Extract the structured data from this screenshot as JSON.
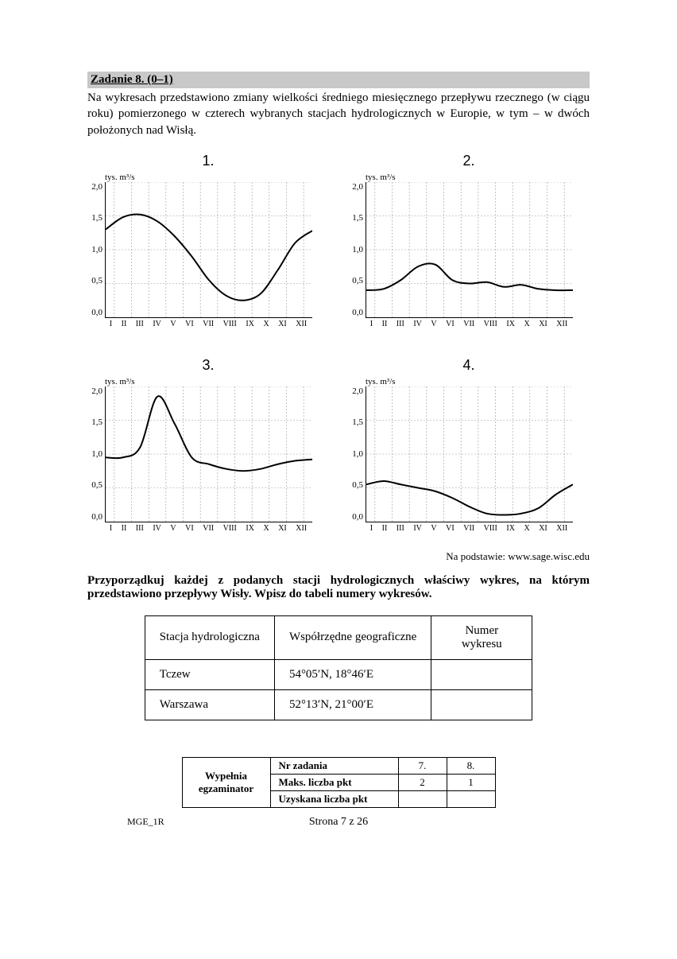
{
  "task": {
    "header": "Zadanie 8. (0–1)",
    "intro": "Na wykresach przedstawiono zmiany wielkości średniego miesięcznego przepływu rzecznego (w ciągu roku) pomierzonego w czterech wybranych stacjach hydrologicznych w Europie, w tym – w dwóch położonych nad Wisłą."
  },
  "axis": {
    "ylabel": "tys. m³/s",
    "yticks": [
      "2,0",
      "1,5",
      "1,0",
      "0,5",
      "0,0"
    ],
    "xticks": [
      "I",
      "II",
      "III",
      "IV",
      "V",
      "VI",
      "VII",
      "VIII",
      "IX",
      "X",
      "XI",
      "XII"
    ],
    "ylim": [
      0,
      2.0
    ],
    "grid_color": "#999999",
    "line_color": "#000000",
    "line_width": 2
  },
  "charts": [
    {
      "num": "1.",
      "data": [
        1.3,
        1.48,
        1.52,
        1.42,
        1.2,
        0.9,
        0.55,
        0.32,
        0.25,
        0.35,
        0.7,
        1.1,
        1.28
      ]
    },
    {
      "num": "2.",
      "data": [
        0.4,
        0.42,
        0.55,
        0.75,
        0.78,
        0.55,
        0.5,
        0.52,
        0.45,
        0.48,
        0.42,
        0.4,
        0.4
      ]
    },
    {
      "num": "3.",
      "data": [
        0.95,
        0.95,
        1.1,
        1.85,
        1.45,
        0.95,
        0.85,
        0.78,
        0.75,
        0.78,
        0.85,
        0.9,
        0.92
      ]
    },
    {
      "num": "4.",
      "data": [
        0.55,
        0.6,
        0.55,
        0.5,
        0.45,
        0.35,
        0.22,
        0.12,
        0.1,
        0.12,
        0.2,
        0.4,
        0.55
      ]
    }
  ],
  "source": "Na podstawie: www.sage.wisc.edu",
  "instruction": "Przyporządkuj każdej z podanych stacji hydrologicznych właściwy wykres, na którym przedstawiono przepływy Wisły. Wpisz do tabeli numery wykresów.",
  "answers": {
    "head": [
      "Stacja hydrologiczna",
      "Współrzędne geograficzne",
      "Numer wykresu"
    ],
    "rows": [
      [
        "Tczew",
        "54°05′N, 18°46′E",
        ""
      ],
      [
        "Warszawa",
        "52°13′N, 21°00′E",
        ""
      ]
    ]
  },
  "scoring": {
    "label": "Wypełnia egzaminator",
    "rows": {
      "nr": "Nr zadania",
      "maks": "Maks. liczba pkt",
      "uzysk": "Uzyskana liczba pkt"
    },
    "cols": [
      "7.",
      "8."
    ],
    "maks": [
      "2",
      "1"
    ]
  },
  "footer": "Strona 7 z 26",
  "code": "MGE_1R"
}
